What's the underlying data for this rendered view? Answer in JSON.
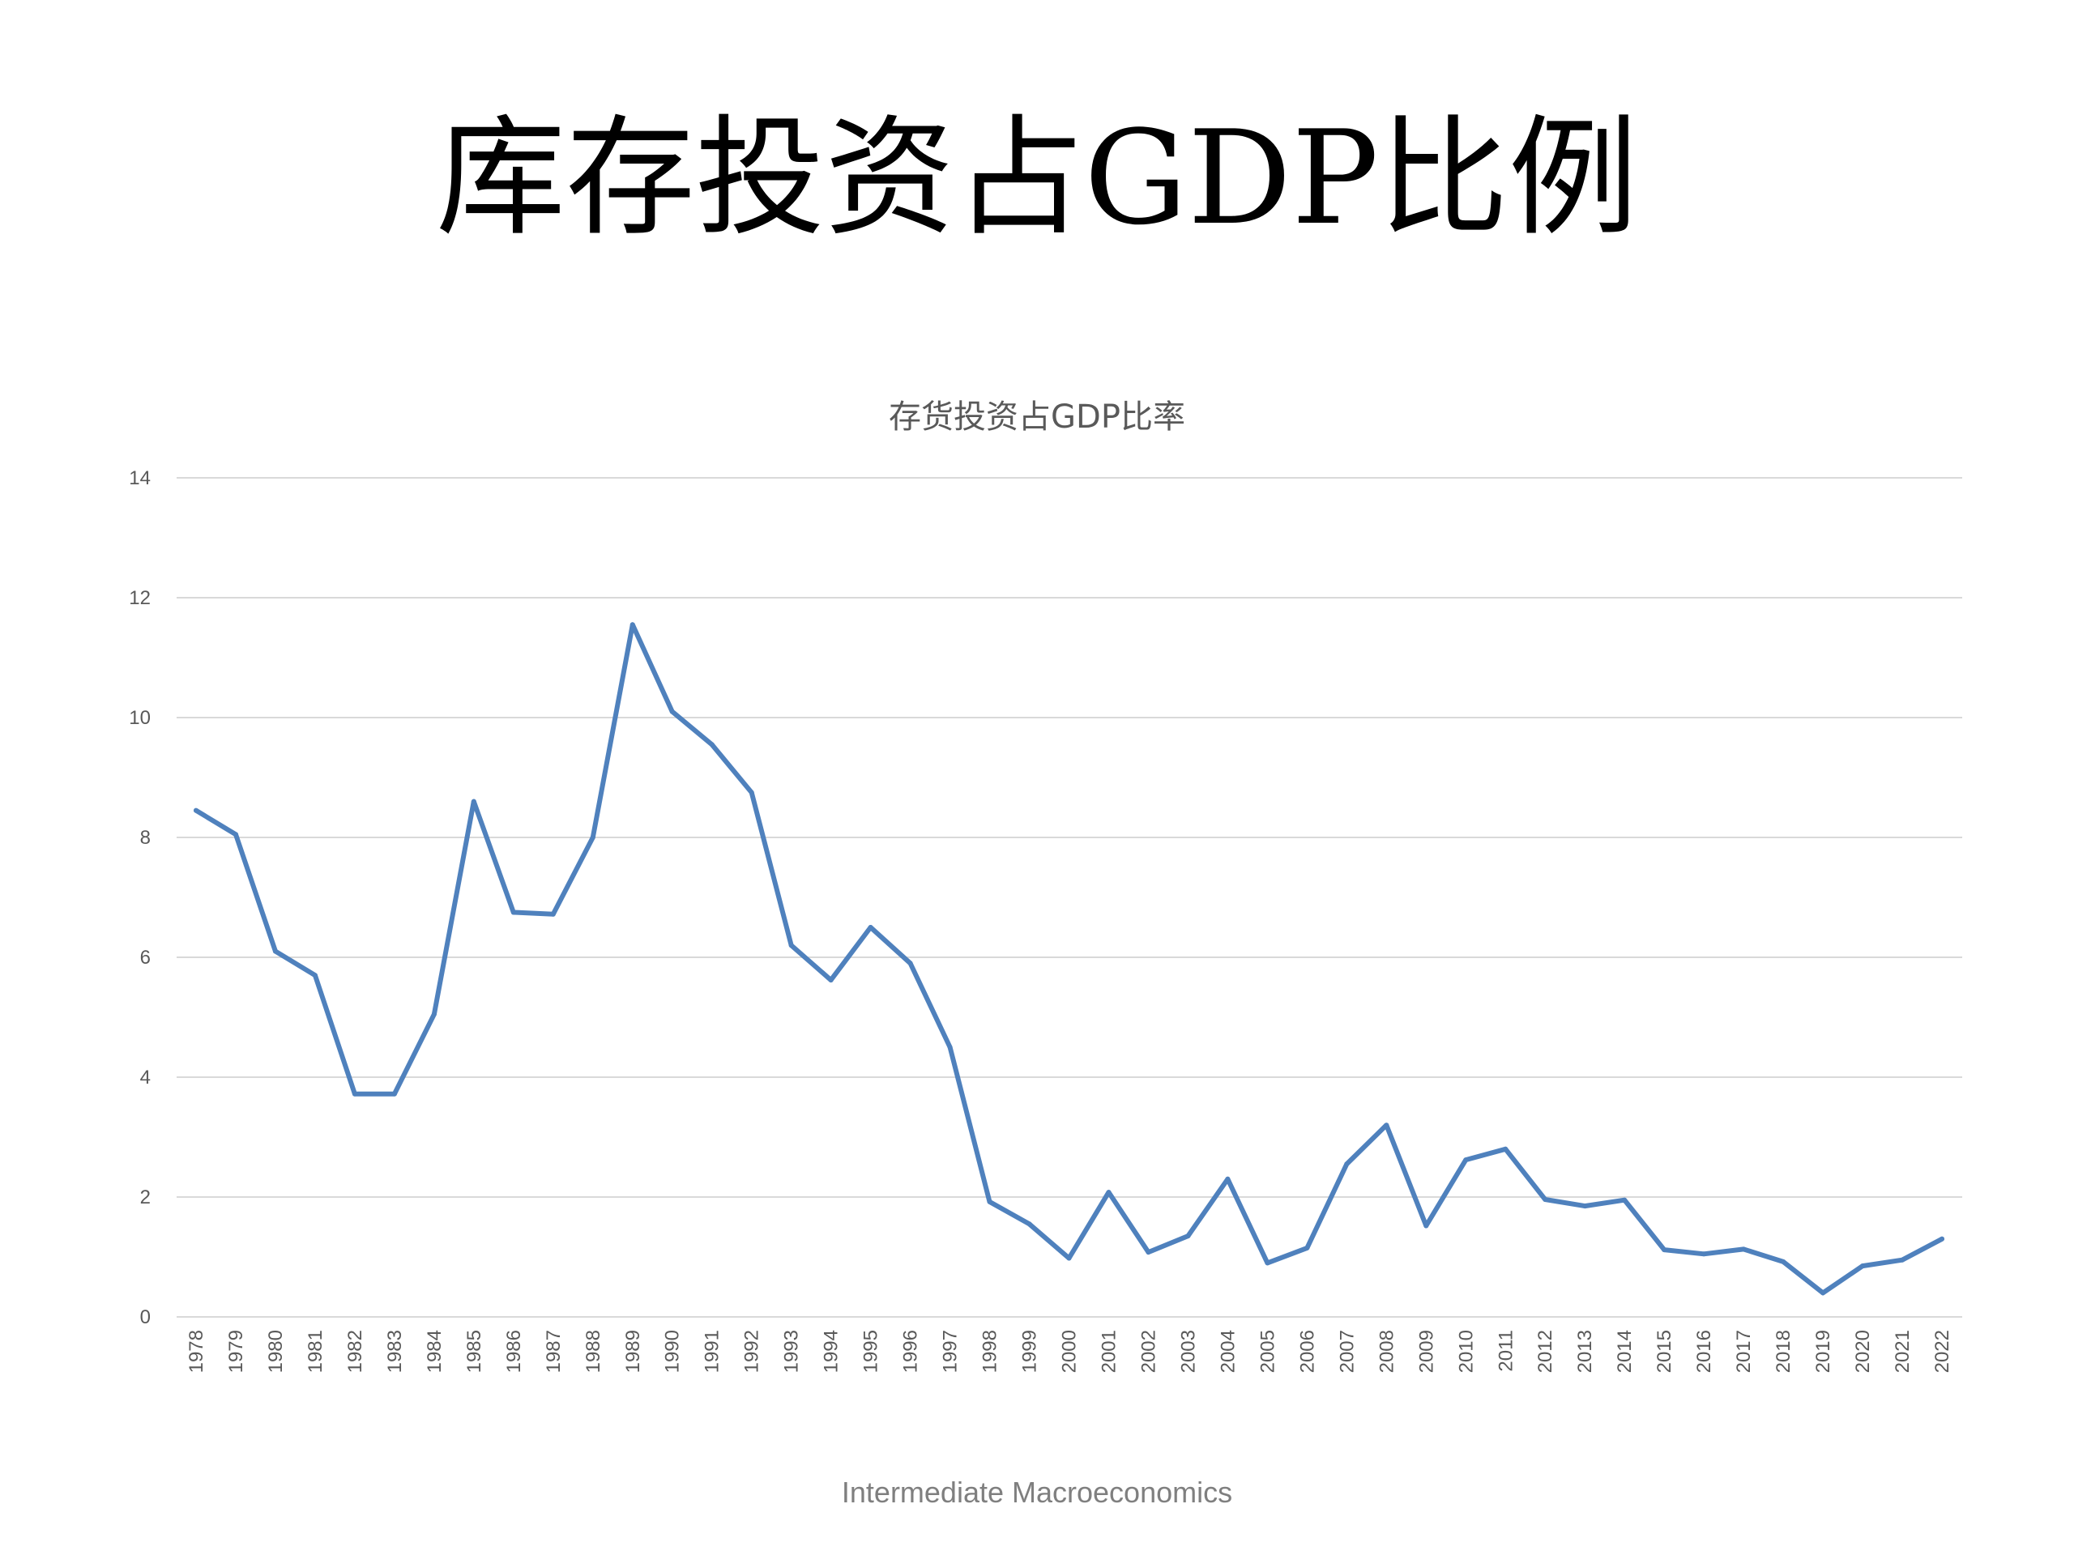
{
  "slide": {
    "title": "库存投资占GDP比例",
    "footer": "Intermediate Macroeconomics"
  },
  "colors": {
    "series": "#4f81bd",
    "grid": "#d9d9d9",
    "axis_text": "#595959"
  },
  "chart_data": {
    "type": "line",
    "title": "存货投资占GDP比率",
    "xlabel": "",
    "ylabel": "",
    "ylim": [
      0,
      14
    ],
    "yticks": [
      "0",
      "2",
      "4",
      "6",
      "8",
      "10",
      "12",
      "14"
    ],
    "grid": true,
    "legend": "none",
    "categories": [
      "1978",
      "1979",
      "1980",
      "1981",
      "1982",
      "1983",
      "1984",
      "1985",
      "1986",
      "1987",
      "1988",
      "1989",
      "1990",
      "1991",
      "1992",
      "1993",
      "1994",
      "1995",
      "1996",
      "1997",
      "1998",
      "1999",
      "2000",
      "2001",
      "2002",
      "2003",
      "2004",
      "2005",
      "2006",
      "2007",
      "2008",
      "2009",
      "2010",
      "2011",
      "2012",
      "2013",
      "2014",
      "2015",
      "2016",
      "2017",
      "2018",
      "2019",
      "2020",
      "2021",
      "2022"
    ],
    "series": [
      {
        "values": [
          8.45,
          8.05,
          6.1,
          5.7,
          3.72,
          3.72,
          5.05,
          8.6,
          6.75,
          6.72,
          8.0,
          11.55,
          10.1,
          9.55,
          8.75,
          6.2,
          5.62,
          6.5,
          5.9,
          4.5,
          1.92,
          1.55,
          0.98,
          2.08,
          1.08,
          1.35,
          2.3,
          0.9,
          1.15,
          2.55,
          3.2,
          1.52,
          2.62,
          2.8,
          1.96,
          1.85,
          1.95,
          1.12,
          1.05,
          1.13,
          0.92,
          0.4,
          0.85,
          0.95,
          1.3
        ]
      }
    ]
  }
}
